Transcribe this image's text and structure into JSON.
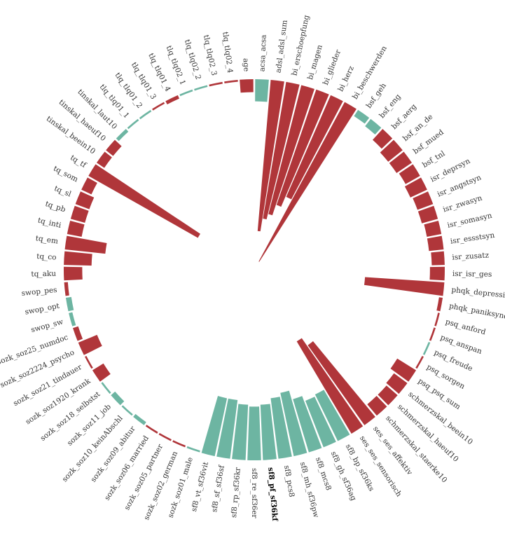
{
  "chart_data": {
    "type": "radial_bar",
    "title": "",
    "colors": {
      "positive": "#b0363a",
      "negative": "#6db5a2"
    },
    "y_axis": {
      "scale": "linear",
      "range": [
        0,
        1.0
      ],
      "sign_encoding": "color"
    },
    "highlighted_label": "sf8_pf_sf36kf",
    "categories": [
      {
        "label": "acsa_acsa",
        "value": 0.12,
        "sign": "negative"
      },
      {
        "label": "adsl_adsl_sum",
        "value": 0.82,
        "sign": "positive"
      },
      {
        "label": "bi_erschoepfung",
        "value": 0.75,
        "sign": "positive"
      },
      {
        "label": "bi_magen",
        "value": 0.72,
        "sign": "positive"
      },
      {
        "label": "bi_glieder",
        "value": 0.66,
        "sign": "positive"
      },
      {
        "label": "bi_herz",
        "value": 0.6,
        "sign": "positive"
      },
      {
        "label": "bi_beschwerden",
        "value": 0.98,
        "sign": "positive"
      },
      {
        "label": "bsf_geh",
        "value": 0.04,
        "sign": "negative"
      },
      {
        "label": "bsf_eng",
        "value": 0.05,
        "sign": "negative"
      },
      {
        "label": "bsf_aerg",
        "value": 0.08,
        "sign": "positive"
      },
      {
        "label": "bsf_an_de",
        "value": 0.1,
        "sign": "positive"
      },
      {
        "label": "bsf_mued",
        "value": 0.1,
        "sign": "positive"
      },
      {
        "label": "bsf_tnl",
        "value": 0.09,
        "sign": "positive"
      },
      {
        "label": "isr_deprsyn",
        "value": 0.1,
        "sign": "positive"
      },
      {
        "label": "isr_angstsyn",
        "value": 0.09,
        "sign": "positive"
      },
      {
        "label": "isr_zwasyn",
        "value": 0.09,
        "sign": "positive"
      },
      {
        "label": "isr_somasyn",
        "value": 0.08,
        "sign": "positive"
      },
      {
        "label": "isr_essstsyn",
        "value": 0.08,
        "sign": "positive"
      },
      {
        "label": "isr_zusatz",
        "value": 0.07,
        "sign": "positive"
      },
      {
        "label": "isr_isr_ges",
        "value": 0.08,
        "sign": "positive"
      },
      {
        "label": "phqk_depressivitaet",
        "value": 0.43,
        "sign": "positive"
      },
      {
        "label": "phqk_paniksyndrom",
        "value": 0.02,
        "sign": "positive"
      },
      {
        "label": "psq_anford",
        "value": 0.01,
        "sign": "positive"
      },
      {
        "label": "psq_anspan",
        "value": 0.01,
        "sign": "positive"
      },
      {
        "label": "psq_freude",
        "value": 0.01,
        "sign": "negative"
      },
      {
        "label": "psq_sorgen",
        "value": 0.01,
        "sign": "positive"
      },
      {
        "label": "psq_psq_sum",
        "value": 0.12,
        "sign": "positive"
      },
      {
        "label": "schmerzskal_beein10",
        "value": 0.09,
        "sign": "positive"
      },
      {
        "label": "schmerzskal_haeuf10",
        "value": 0.08,
        "sign": "positive"
      },
      {
        "label": "schmerzskal_staerke10",
        "value": 0.08,
        "sign": "positive"
      },
      {
        "label": "ses_ses_affektiv",
        "value": 0.53,
        "sign": "positive"
      },
      {
        "label": "ses_ses_sensorisch",
        "value": 0.58,
        "sign": "positive"
      },
      {
        "label": "sf8_bp_sf36ks",
        "value": 0.28,
        "sign": "negative"
      },
      {
        "label": "sf8_gh_sf36ag",
        "value": 0.27,
        "sign": "negative"
      },
      {
        "label": "sf8_mcs8",
        "value": 0.3,
        "sign": "negative"
      },
      {
        "label": "sf8_mh_sf36pw",
        "value": 0.35,
        "sign": "negative"
      },
      {
        "label": "sf8_pcs8",
        "value": 0.33,
        "sign": "negative"
      },
      {
        "label": "sf8_pf_sf36kf",
        "value": 0.3,
        "sign": "negative"
      },
      {
        "label": "sf8_re_sf36er",
        "value": 0.29,
        "sign": "negative"
      },
      {
        "label": "sf8_rp_sf36kr",
        "value": 0.3,
        "sign": "negative"
      },
      {
        "label": "sf8_sf_sf36sf",
        "value": 0.32,
        "sign": "negative"
      },
      {
        "label": "sf8_vt_sf36vit",
        "value": 0.32,
        "sign": "negative"
      },
      {
        "label": "sozk_soz01_male",
        "value": 0.01,
        "sign": "negative"
      },
      {
        "label": "sozk_soz02_german",
        "value": 0.01,
        "sign": "positive"
      },
      {
        "label": "sozk_soz05_partner",
        "value": 0.01,
        "sign": "positive"
      },
      {
        "label": "sozk_soz06_married",
        "value": 0.01,
        "sign": "positive"
      },
      {
        "label": "sozk_soz09_abitur",
        "value": 0.02,
        "sign": "negative"
      },
      {
        "label": "sozk_soz10_keinAbschl",
        "value": 0.01,
        "sign": "negative"
      },
      {
        "label": "sozk_soz11_job",
        "value": 0.03,
        "sign": "negative"
      },
      {
        "label": "sozk_soz18_selbstst",
        "value": 0.01,
        "sign": "negative"
      },
      {
        "label": "sozk_soz1920_krank",
        "value": 0.07,
        "sign": "positive"
      },
      {
        "label": "sozk_soz21_tindauer",
        "value": 0.01,
        "sign": "positive"
      },
      {
        "label": "sozk_soz2224_psycho",
        "value": 0.11,
        "sign": "positive"
      },
      {
        "label": "sozk_soz25_numdoc",
        "value": 0.03,
        "sign": "positive"
      },
      {
        "label": "swop_sw",
        "value": 0.02,
        "sign": "negative"
      },
      {
        "label": "swop_opt",
        "value": 0.03,
        "sign": "negative"
      },
      {
        "label": "swop_pes",
        "value": 0.02,
        "sign": "positive"
      },
      {
        "label": "tq_aku",
        "value": 0.1,
        "sign": "positive"
      },
      {
        "label": "tq_co",
        "value": 0.15,
        "sign": "positive"
      },
      {
        "label": "tq_em",
        "value": 0.22,
        "sign": "positive"
      },
      {
        "label": "tq_inti",
        "value": 0.08,
        "sign": "positive"
      },
      {
        "label": "tq_pb",
        "value": 0.08,
        "sign": "positive"
      },
      {
        "label": "tq_sl",
        "value": 0.08,
        "sign": "positive"
      },
      {
        "label": "tq_som",
        "value": 0.06,
        "sign": "positive"
      },
      {
        "label": "tq_tf",
        "value": 0.68,
        "sign": "positive"
      },
      {
        "label": "tinskal_beein10",
        "value": 0.05,
        "sign": "positive"
      },
      {
        "label": "tinskal_haeuf10",
        "value": 0.05,
        "sign": "positive"
      },
      {
        "label": "tinskal_laut10",
        "value": 0.02,
        "sign": "negative"
      },
      {
        "label": "tlq_tlq01_1",
        "value": 0.01,
        "sign": "negative"
      },
      {
        "label": "tlq_tlq01_2",
        "value": 0.01,
        "sign": "negative"
      },
      {
        "label": "tlq_tlq01_3",
        "value": 0.01,
        "sign": "positive"
      },
      {
        "label": "tlq_tlq01_4",
        "value": 0.02,
        "sign": "positive"
      },
      {
        "label": "tlq_tlq02_1",
        "value": 0.01,
        "sign": "negative"
      },
      {
        "label": "tlq_tlq02_2",
        "value": 0.01,
        "sign": "negative"
      },
      {
        "label": "tlq_tlq02_3",
        "value": 0.01,
        "sign": "positive"
      },
      {
        "label": "tlq_tlq02_4",
        "value": 0.01,
        "sign": "positive"
      },
      {
        "label": "age",
        "value": 0.07,
        "sign": "positive"
      }
    ]
  }
}
